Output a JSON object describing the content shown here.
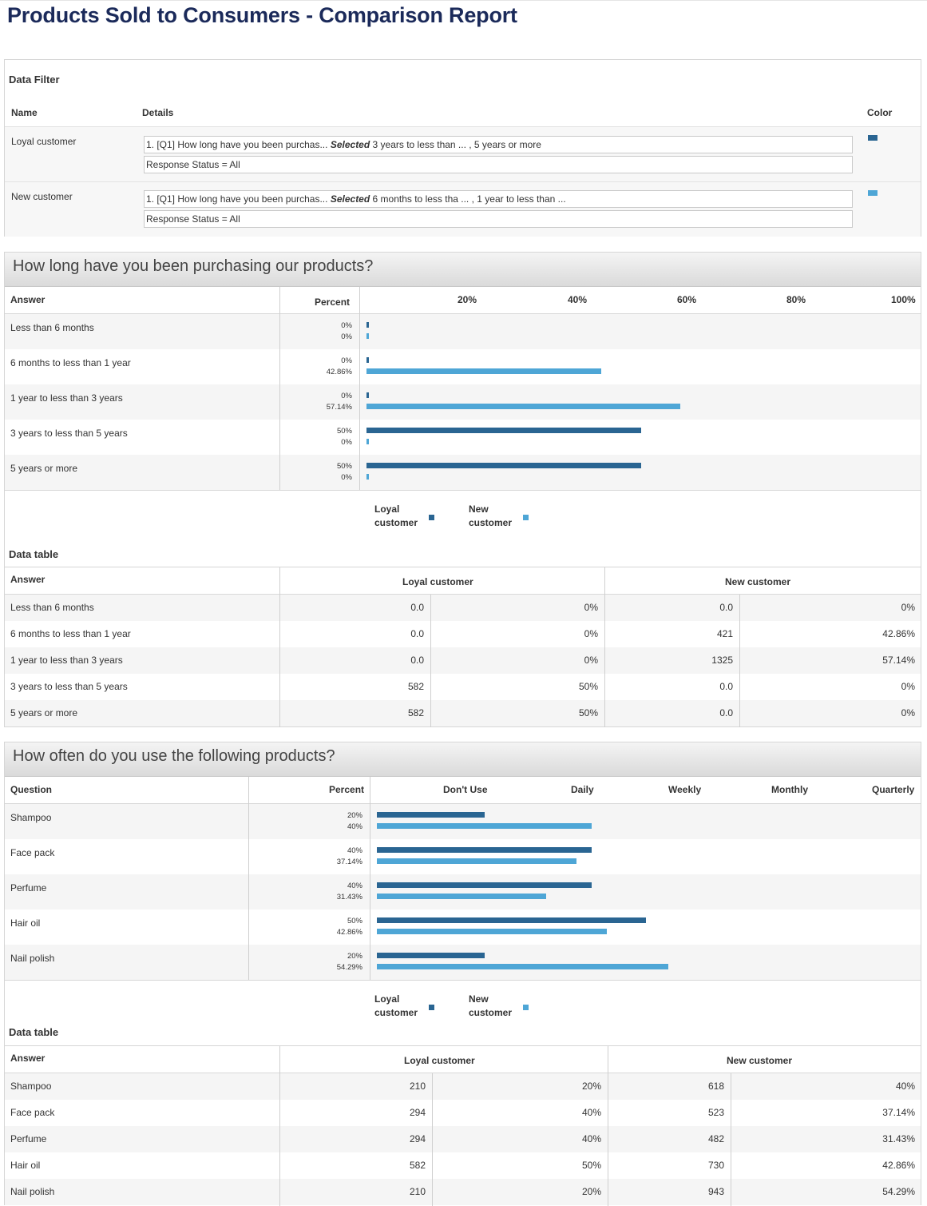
{
  "report": {
    "title": "Products Sold to Consumers - Comparison Report"
  },
  "colors": {
    "loyal": "#2a6592",
    "new": "#4ea6d6"
  },
  "filter": {
    "title": "Data Filter",
    "headers": {
      "name": "Name",
      "details": "Details",
      "color": "Color"
    },
    "rows": [
      {
        "name": "Loyal customer",
        "q_prefix": "1. [Q1] How long have you been purchas...",
        "q_selected": "Selected",
        "q_values": "3 years to less than ... , 5 years or more",
        "status": "Response Status = All"
      },
      {
        "name": "New customer",
        "q_prefix": "1. [Q1] How long have you been purchas...",
        "q_selected": "Selected",
        "q_values": "6 months to less tha ... , 1 year to less than ...",
        "status": "Response Status = All"
      }
    ]
  },
  "q1": {
    "title": "How long have you been purchasing our products?",
    "col_answer": "Answer",
    "col_percent": "Percent",
    "ticks": [
      "20%",
      "40%",
      "60%",
      "80%",
      "100%"
    ],
    "legend": {
      "loyal": "Loyal customer",
      "new": "New customer"
    },
    "data_table_title": "Data table",
    "table": {
      "col_answer": "Answer",
      "col_loyal": "Loyal customer",
      "col_new": "New customer",
      "rows": [
        {
          "answer": "Less than 6 months",
          "loyal_n": "0.0",
          "loyal_p": "0%",
          "new_n": "0.0",
          "new_p": "0%"
        },
        {
          "answer": "6 months to less than 1 year",
          "loyal_n": "0.0",
          "loyal_p": "0%",
          "new_n": "421",
          "new_p": "42.86%"
        },
        {
          "answer": "1 year to less than 3 years",
          "loyal_n": "0.0",
          "loyal_p": "0%",
          "new_n": "1325",
          "new_p": "57.14%"
        },
        {
          "answer": "3 years to less than 5 years",
          "loyal_n": "582",
          "loyal_p": "50%",
          "new_n": "0.0",
          "new_p": "0%"
        },
        {
          "answer": "5 years or more",
          "loyal_n": "582",
          "loyal_p": "50%",
          "new_n": "0.0",
          "new_p": "0%"
        }
      ]
    }
  },
  "q2": {
    "title": "How often do you use the following products?",
    "col_question": "Question",
    "col_percent": "Percent",
    "ticks": [
      "Don't Use",
      "Daily",
      "Weekly",
      "Monthly",
      "Quarterly"
    ],
    "legend": {
      "loyal": "Loyal customer",
      "new": "New customer"
    },
    "data_table_title": "Data table",
    "table": {
      "col_answer": "Answer",
      "col_loyal": "Loyal customer",
      "col_new": "New customer",
      "rows": [
        {
          "answer": "Shampoo",
          "loyal_n": "210",
          "loyal_p": "20%",
          "new_n": "618",
          "new_p": "40%"
        },
        {
          "answer": "Face pack",
          "loyal_n": "294",
          "loyal_p": "40%",
          "new_n": "523",
          "new_p": "37.14%"
        },
        {
          "answer": "Perfume",
          "loyal_n": "294",
          "loyal_p": "40%",
          "new_n": "482",
          "new_p": "31.43%"
        },
        {
          "answer": "Hair oil",
          "loyal_n": "582",
          "loyal_p": "50%",
          "new_n": "730",
          "new_p": "42.86%"
        },
        {
          "answer": "Nail polish",
          "loyal_n": "210",
          "loyal_p": "20%",
          "new_n": "943",
          "new_p": "54.29%"
        }
      ]
    }
  },
  "chart_data": [
    {
      "type": "bar",
      "title": "How long have you been purchasing our products?",
      "xlabel": "Percent",
      "categories": [
        "Less than 6 months",
        "6 months to less than 1 year",
        "1 year to less than 3 years",
        "3 years to less than 5 years",
        "5 years or more"
      ],
      "series": [
        {
          "name": "Loyal customer",
          "values": [
            0,
            0,
            0,
            50,
            50
          ],
          "labels": [
            "0%",
            "0%",
            "0%",
            "50%",
            "50%"
          ]
        },
        {
          "name": "New customer",
          "values": [
            0,
            42.86,
            57.14,
            0,
            0
          ],
          "labels": [
            "0%",
            "42.86%",
            "57.14%",
            "0%",
            "0%"
          ]
        }
      ],
      "xlim": [
        0,
        100
      ],
      "ticks": [
        "20%",
        "40%",
        "60%",
        "80%",
        "100%"
      ],
      "orientation": "horizontal",
      "legend": "bottom-center"
    },
    {
      "type": "bar",
      "title": "How often do you use the following products?",
      "xlabel": "Percent",
      "categories": [
        "Shampoo",
        "Face pack",
        "Perfume",
        "Hair oil",
        "Nail polish"
      ],
      "series": [
        {
          "name": "Loyal customer",
          "values": [
            20,
            40,
            40,
            50,
            20
          ],
          "labels": [
            "20%",
            "40%",
            "40%",
            "50%",
            "20%"
          ]
        },
        {
          "name": "New customer",
          "values": [
            40,
            37.14,
            31.43,
            42.86,
            54.29
          ],
          "labels": [
            "40%",
            "37.14%",
            "31.43%",
            "42.86%",
            "54.29%"
          ]
        }
      ],
      "ticks": [
        "Don't Use",
        "Daily",
        "Weekly",
        "Monthly",
        "Quarterly"
      ],
      "orientation": "horizontal",
      "legend": "bottom-center"
    }
  ]
}
